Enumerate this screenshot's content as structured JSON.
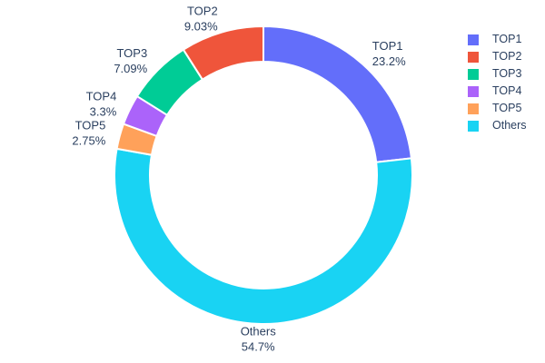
{
  "figure": {
    "background": "#ffffff",
    "text_color": "#2a3f5f"
  },
  "chart_data": {
    "type": "pie",
    "title": "",
    "hole": 0.76,
    "rotation_deg": 0,
    "direction": "clockwise",
    "grid": false,
    "legend_position": "right",
    "categories": [
      "TOP1",
      "TOP2",
      "TOP3",
      "TOP4",
      "TOP5",
      "Others"
    ],
    "values": [
      23.2,
      9.03,
      7.09,
      3.3,
      2.75,
      54.7
    ],
    "slices": [
      {
        "name": "TOP1",
        "value": 23.2,
        "percent_label": "23.2%",
        "color": "#636EFA"
      },
      {
        "name": "TOP2",
        "value": 9.03,
        "percent_label": "9.03%",
        "color": "#EF553B"
      },
      {
        "name": "TOP3",
        "value": 7.09,
        "percent_label": "7.09%",
        "color": "#00CC96"
      },
      {
        "name": "TOP4",
        "value": 3.3,
        "percent_label": "3.3%",
        "color": "#AB63FA"
      },
      {
        "name": "TOP5",
        "value": 2.75,
        "percent_label": "2.75%",
        "color": "#FFA15A"
      },
      {
        "name": "Others",
        "value": 54.7,
        "percent_label": "54.7%",
        "color": "#19D3F3"
      }
    ],
    "clockwise_order": [
      "TOP1",
      "Others",
      "TOP5",
      "TOP4",
      "TOP3",
      "TOP2"
    ],
    "legend": [
      "TOP1",
      "TOP2",
      "TOP3",
      "TOP4",
      "TOP5",
      "Others"
    ]
  }
}
